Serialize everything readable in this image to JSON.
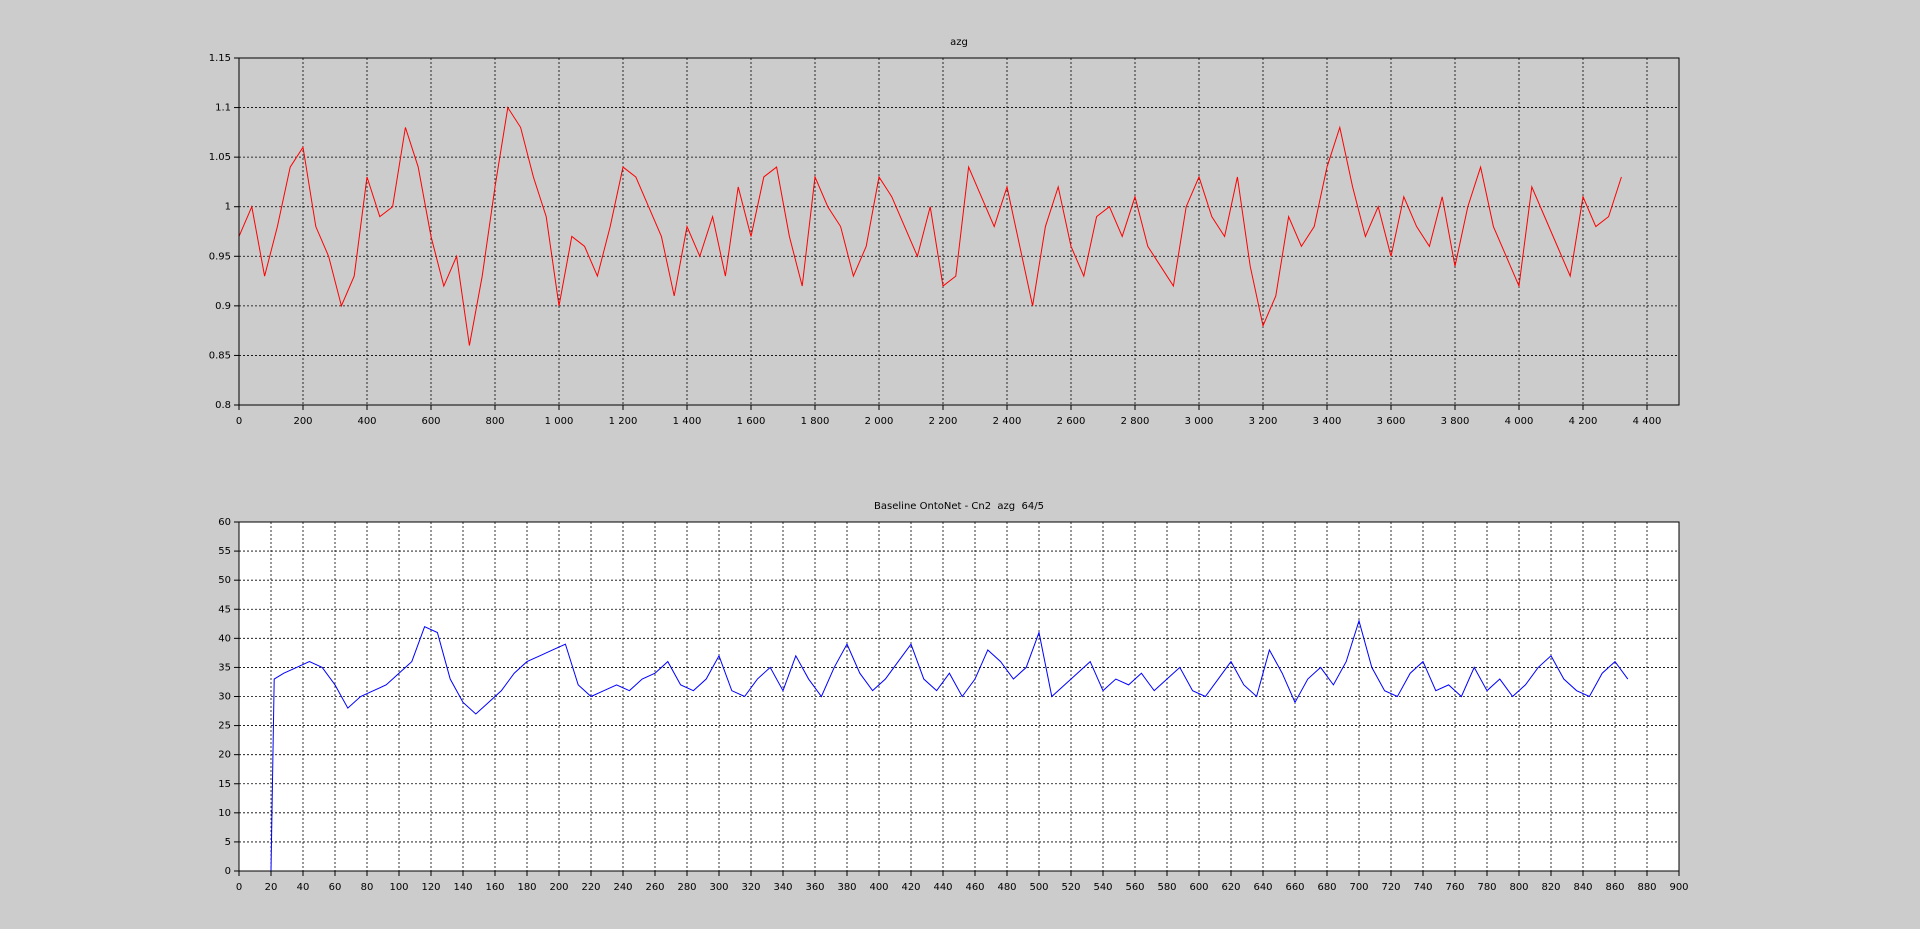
{
  "chart_data": [
    {
      "type": "line",
      "title": "azg",
      "grid": true,
      "xlim": [
        0,
        4500
      ],
      "ylim": [
        0.8,
        1.15
      ],
      "xticks": [
        0,
        200,
        400,
        600,
        800,
        {
          "value": 1000,
          "label": "1 000"
        },
        {
          "value": 1200,
          "label": "1 200"
        },
        {
          "value": 1400,
          "label": "1 400"
        },
        {
          "value": 1600,
          "label": "1 600"
        },
        {
          "value": 1800,
          "label": "1 800"
        },
        {
          "value": 2000,
          "label": "2 000"
        },
        {
          "value": 2200,
          "label": "2 200"
        },
        {
          "value": 2400,
          "label": "2 400"
        },
        {
          "value": 2600,
          "label": "2 600"
        },
        {
          "value": 2800,
          "label": "2 800"
        },
        {
          "value": 3000,
          "label": "3 000"
        },
        {
          "value": 3200,
          "label": "3 200"
        },
        {
          "value": 3400,
          "label": "3 400"
        },
        {
          "value": 3600,
          "label": "3 600"
        },
        {
          "value": 3800,
          "label": "3 800"
        },
        {
          "value": 4000,
          "label": "4 000"
        },
        {
          "value": 4200,
          "label": "4 200"
        },
        {
          "value": 4400,
          "label": "4 400"
        }
      ],
      "yticks": [
        0.8,
        0.85,
        0.9,
        0.95,
        1,
        1.05,
        1.1,
        1.15
      ],
      "x": [
        0,
        40,
        80,
        120,
        160,
        200,
        240,
        280,
        320,
        360,
        400,
        440,
        480,
        520,
        560,
        600,
        640,
        680,
        720,
        760,
        800,
        840,
        880,
        920,
        960,
        1000,
        1040,
        1080,
        1120,
        1160,
        1200,
        1240,
        1280,
        1320,
        1360,
        1400,
        1440,
        1480,
        1520,
        1560,
        1600,
        1640,
        1680,
        1720,
        1760,
        1800,
        1840,
        1880,
        1920,
        1960,
        2000,
        2040,
        2080,
        2120,
        2160,
        2200,
        2240,
        2280,
        2320,
        2360,
        2400,
        2440,
        2480,
        2520,
        2560,
        2600,
        2640,
        2680,
        2720,
        2760,
        2800,
        2840,
        2880,
        2920,
        2960,
        3000,
        3040,
        3080,
        3120,
        3160,
        3200,
        3240,
        3280,
        3320,
        3360,
        3400,
        3440,
        3480,
        3520,
        3560,
        3600,
        3640,
        3680,
        3720,
        3760,
        3800,
        3840,
        3880,
        3920,
        3960,
        4000,
        4040,
        4080,
        4120,
        4160,
        4200,
        4240,
        4280,
        4320
      ],
      "series": [
        {
          "color": "#ff0000",
          "values": [
            0.97,
            1.0,
            0.93,
            0.98,
            1.04,
            1.06,
            0.98,
            0.95,
            0.9,
            0.93,
            1.03,
            0.99,
            1.0,
            1.08,
            1.04,
            0.97,
            0.92,
            0.95,
            0.86,
            0.93,
            1.02,
            1.1,
            1.08,
            1.03,
            0.99,
            0.9,
            0.97,
            0.96,
            0.93,
            0.98,
            1.04,
            1.03,
            1.0,
            0.97,
            0.91,
            0.98,
            0.95,
            0.99,
            0.93,
            1.02,
            0.97,
            1.03,
            1.04,
            0.97,
            0.92,
            1.03,
            1.0,
            0.98,
            0.93,
            0.96,
            1.03,
            1.01,
            0.98,
            0.95,
            1.0,
            0.92,
            0.93,
            1.04,
            1.01,
            0.98,
            1.02,
            0.96,
            0.9,
            0.98,
            1.02,
            0.96,
            0.93,
            0.99,
            1.0,
            0.97,
            1.01,
            0.96,
            0.94,
            0.92,
            1.0,
            1.03,
            0.99,
            0.97,
            1.03,
            0.94,
            0.88,
            0.91,
            0.99,
            0.96,
            0.98,
            1.04,
            1.08,
            1.02,
            0.97,
            1.0,
            0.95,
            1.01,
            0.98,
            0.96,
            1.01,
            0.94,
            1.0,
            1.04,
            0.98,
            0.95,
            0.92,
            1.02,
            0.99,
            0.96,
            0.93,
            1.01,
            0.98,
            0.99,
            1.03
          ]
        }
      ]
    },
    {
      "type": "line",
      "title": "Baseline OntoNet - Cn2  azg  64/5",
      "grid": true,
      "xlim": [
        0,
        900
      ],
      "ylim": [
        0,
        60
      ],
      "xticks": [
        0,
        20,
        40,
        60,
        80,
        100,
        120,
        140,
        160,
        180,
        200,
        220,
        240,
        260,
        280,
        300,
        320,
        340,
        360,
        380,
        400,
        420,
        440,
        460,
        480,
        500,
        520,
        540,
        560,
        580,
        600,
        620,
        640,
        660,
        680,
        700,
        720,
        740,
        760,
        780,
        800,
        820,
        840,
        860,
        880,
        900
      ],
      "yticks": [
        0,
        5,
        10,
        15,
        20,
        25,
        30,
        35,
        40,
        45,
        50,
        55,
        60
      ],
      "x": [
        20,
        22,
        28,
        36,
        44,
        52,
        60,
        68,
        76,
        84,
        92,
        100,
        108,
        116,
        124,
        132,
        140,
        148,
        156,
        164,
        172,
        180,
        188,
        196,
        204,
        212,
        220,
        228,
        236,
        244,
        252,
        260,
        268,
        276,
        284,
        292,
        300,
        308,
        316,
        324,
        332,
        340,
        348,
        356,
        364,
        372,
        380,
        388,
        396,
        404,
        412,
        420,
        428,
        436,
        444,
        452,
        460,
        468,
        476,
        484,
        492,
        500,
        508,
        516,
        524,
        532,
        540,
        548,
        556,
        564,
        572,
        580,
        588,
        596,
        604,
        612,
        620,
        628,
        636,
        644,
        652,
        660,
        668,
        676,
        684,
        692,
        700,
        708,
        716,
        724,
        732,
        740,
        748,
        756,
        764,
        772,
        780,
        788,
        796,
        804,
        812,
        820,
        828,
        836,
        844,
        852,
        860,
        868
      ],
      "series": [
        {
          "color": "#0000ff",
          "values": [
            0,
            33,
            34,
            35,
            36,
            35,
            32,
            28,
            30,
            31,
            32,
            34,
            36,
            42,
            41,
            33,
            29,
            27,
            29,
            31,
            34,
            36,
            37,
            38,
            39,
            32,
            30,
            31,
            32,
            31,
            33,
            34,
            36,
            32,
            31,
            33,
            37,
            31,
            30,
            33,
            35,
            31,
            37,
            33,
            30,
            35,
            39,
            34,
            31,
            33,
            36,
            39,
            33,
            31,
            34,
            30,
            33,
            38,
            36,
            33,
            35,
            41,
            30,
            32,
            34,
            36,
            31,
            33,
            32,
            34,
            31,
            33,
            35,
            31,
            30,
            33,
            36,
            32,
            30,
            38,
            34,
            29,
            33,
            35,
            32,
            36,
            43,
            35,
            31,
            30,
            34,
            36,
            31,
            32,
            30,
            35,
            31,
            33,
            30,
            32,
            35,
            37,
            33,
            31,
            30,
            34,
            36,
            33
          ]
        }
      ]
    }
  ]
}
